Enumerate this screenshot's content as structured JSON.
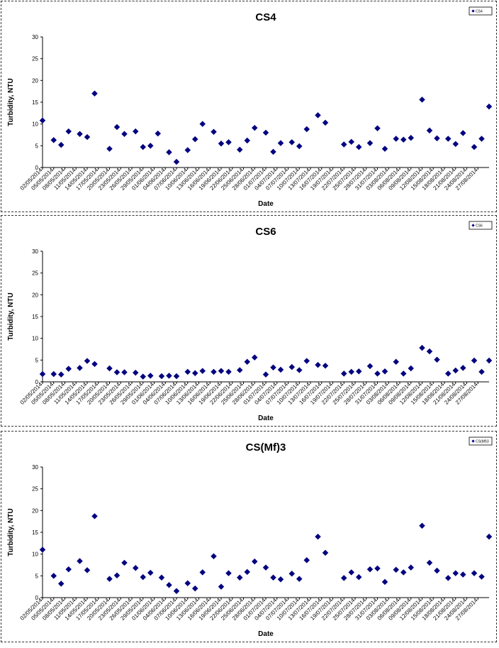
{
  "chart_data": [
    {
      "type": "scatter",
      "title": "CS4",
      "xlabel": "Date",
      "ylabel": "Turbidity, NTU",
      "ylim": [
        0,
        30
      ],
      "yticks": [
        0,
        5,
        10,
        15,
        20,
        25,
        30
      ],
      "xlim": [
        "2014-05-02",
        "2014-08-30"
      ],
      "xticks": [
        "02/05/2014",
        "05/05/2014",
        "08/05/2014",
        "11/05/2014",
        "14/05/2014",
        "17/05/2014",
        "20/05/2014",
        "23/05/2014",
        "26/05/2014",
        "29/05/2014",
        "01/06/2014",
        "04/06/2014",
        "07/06/2014",
        "10/06/2014",
        "13/06/2014",
        "16/06/2014",
        "19/06/2014",
        "22/06/2014",
        "25/06/2014",
        "28/06/2014",
        "01/07/2014",
        "04/07/2014",
        "07/07/2014",
        "10/07/2014",
        "13/07/2014",
        "16/07/2014",
        "19/07/2014",
        "22/07/2014",
        "25/07/2014",
        "28/07/2014",
        "31/07/2014",
        "03/08/2014",
        "06/08/2014",
        "09/08/2014",
        "12/08/2014",
        "15/08/2014",
        "18/08/2014",
        "21/08/2014",
        "24/08/2014",
        "27/08/2014"
      ],
      "legend_position": "top-right",
      "series": [
        {
          "name": "CS4",
          "color": "#000080",
          "x": [
            "2014-05-02",
            "2014-05-05",
            "2014-05-07",
            "2014-05-09",
            "2014-05-12",
            "2014-05-14",
            "2014-05-16",
            "2014-05-20",
            "2014-05-22",
            "2014-05-24",
            "2014-05-27",
            "2014-05-29",
            "2014-05-31",
            "2014-06-02",
            "2014-06-05",
            "2014-06-07",
            "2014-06-10",
            "2014-06-12",
            "2014-06-14",
            "2014-06-17",
            "2014-06-19",
            "2014-06-21",
            "2014-06-24",
            "2014-06-26",
            "2014-06-28",
            "2014-07-01",
            "2014-07-03",
            "2014-07-05",
            "2014-07-08",
            "2014-07-10",
            "2014-07-12",
            "2014-07-15",
            "2014-07-17",
            "2014-07-22",
            "2014-07-24",
            "2014-07-26",
            "2014-07-29",
            "2014-07-31",
            "2014-08-02",
            "2014-08-05",
            "2014-08-07",
            "2014-08-09",
            "2014-08-12",
            "2014-08-14",
            "2014-08-16",
            "2014-08-19",
            "2014-08-21",
            "2014-08-23",
            "2014-08-26",
            "2014-08-28",
            "2014-08-30"
          ],
          "y": [
            10.8,
            6.3,
            5.2,
            8.3,
            7.7,
            7.0,
            17.0,
            4.3,
            9.3,
            7.7,
            8.3,
            4.7,
            5.0,
            7.8,
            3.5,
            1.3,
            4.0,
            6.5,
            10.0,
            8.2,
            5.5,
            5.8,
            4.1,
            6.2,
            9.1,
            8.0,
            3.6,
            5.6,
            5.8,
            4.9,
            8.8,
            12.0,
            10.3,
            5.3,
            5.9,
            4.7,
            5.6,
            9.0,
            4.3,
            6.6,
            6.4,
            6.8,
            15.6,
            8.5,
            6.7,
            6.6,
            5.4,
            7.9,
            4.7,
            6.6,
            14.0
          ]
        }
      ]
    },
    {
      "type": "scatter",
      "title": "CS6",
      "xlabel": "Date",
      "ylabel": "Turbidity, NTU",
      "ylim": [
        0,
        30
      ],
      "yticks": [
        0,
        5,
        10,
        15,
        20,
        25,
        30
      ],
      "xlim": [
        "2014-05-02",
        "2014-08-30"
      ],
      "xticks": [
        "02/05/2014",
        "05/05/2014",
        "08/05/2014",
        "11/05/2014",
        "14/05/2014",
        "17/05/2014",
        "20/05/2014",
        "23/05/2014",
        "26/05/2014",
        "29/05/2014",
        "01/06/2014",
        "04/06/2014",
        "07/06/2014",
        "10/06/2014",
        "13/06/2014",
        "16/06/2014",
        "19/06/2014",
        "22/06/2014",
        "25/06/2014",
        "28/06/2014",
        "01/07/2014",
        "04/07/2014",
        "07/07/2014",
        "10/07/2014",
        "13/07/2014",
        "16/07/2014",
        "19/07/2014",
        "22/07/2014",
        "25/07/2014",
        "28/07/2014",
        "31/07/2014",
        "03/08/2014",
        "06/08/2014",
        "09/08/2014",
        "12/08/2014",
        "15/08/2014",
        "18/08/2014",
        "21/08/2014",
        "24/08/2014",
        "27/08/2014"
      ],
      "legend_position": "top-right",
      "series": [
        {
          "name": "CS6",
          "color": "#000080",
          "x": [
            "2014-05-02",
            "2014-05-05",
            "2014-05-07",
            "2014-05-09",
            "2014-05-12",
            "2014-05-14",
            "2014-05-16",
            "2014-05-20",
            "2014-05-22",
            "2014-05-24",
            "2014-05-27",
            "2014-05-29",
            "2014-05-31",
            "2014-06-03",
            "2014-06-05",
            "2014-06-07",
            "2014-06-10",
            "2014-06-12",
            "2014-06-14",
            "2014-06-17",
            "2014-06-19",
            "2014-06-21",
            "2014-06-24",
            "2014-06-26",
            "2014-06-28",
            "2014-07-01",
            "2014-07-03",
            "2014-07-05",
            "2014-07-08",
            "2014-07-10",
            "2014-07-12",
            "2014-07-15",
            "2014-07-17",
            "2014-07-22",
            "2014-07-24",
            "2014-07-26",
            "2014-07-29",
            "2014-07-31",
            "2014-08-02",
            "2014-08-05",
            "2014-08-07",
            "2014-08-09",
            "2014-08-12",
            "2014-08-14",
            "2014-08-16",
            "2014-08-19",
            "2014-08-21",
            "2014-08-23",
            "2014-08-26",
            "2014-08-28",
            "2014-08-30"
          ],
          "y": [
            1.8,
            1.8,
            1.7,
            3.0,
            3.2,
            4.8,
            4.1,
            3.1,
            2.2,
            2.2,
            2.1,
            1.2,
            1.4,
            1.3,
            1.4,
            1.3,
            2.3,
            2.0,
            2.5,
            2.3,
            2.5,
            2.3,
            2.7,
            4.6,
            5.6,
            1.7,
            3.3,
            2.8,
            3.4,
            2.7,
            4.8,
            3.9,
            3.7,
            1.9,
            2.3,
            2.4,
            3.6,
            1.9,
            2.4,
            4.6,
            1.9,
            3.1,
            7.8,
            7.0,
            5.1,
            1.9,
            2.6,
            3.2,
            4.9,
            2.3,
            4.9
          ]
        }
      ]
    },
    {
      "type": "scatter",
      "title": "CS(Mf)3",
      "xlabel": "Date",
      "ylabel": "Turbidity, NTU",
      "ylim": [
        0,
        30
      ],
      "yticks": [
        0,
        5,
        10,
        15,
        20,
        25,
        30
      ],
      "xlim": [
        "2014-05-02",
        "2014-08-30"
      ],
      "xticks": [
        "02/05/2014",
        "05/05/2014",
        "08/05/2014",
        "11/05/2014",
        "14/05/2014",
        "17/05/2014",
        "20/05/2014",
        "23/05/2014",
        "26/05/2014",
        "29/05/2014",
        "01/06/2014",
        "04/06/2014",
        "07/06/2014",
        "10/06/2014",
        "13/06/2014",
        "16/06/2014",
        "19/06/2014",
        "22/06/2014",
        "25/06/2014",
        "28/06/2014",
        "01/07/2014",
        "04/07/2014",
        "07/07/2014",
        "10/07/2014",
        "13/07/2014",
        "16/07/2014",
        "19/07/2014",
        "22/07/2014",
        "25/07/2014",
        "28/07/2014",
        "31/07/2014",
        "03/08/2014",
        "06/08/2014",
        "09/08/2014",
        "12/08/2014",
        "15/08/2014",
        "18/08/2014",
        "21/08/2014",
        "24/08/2014",
        "27/08/2014"
      ],
      "legend_position": "top-right",
      "series": [
        {
          "name": "CS(Mf)3",
          "color": "#000080",
          "x": [
            "2014-05-02",
            "2014-05-05",
            "2014-05-07",
            "2014-05-09",
            "2014-05-12",
            "2014-05-14",
            "2014-05-16",
            "2014-05-20",
            "2014-05-22",
            "2014-05-24",
            "2014-05-27",
            "2014-05-29",
            "2014-05-31",
            "2014-06-03",
            "2014-06-05",
            "2014-06-07",
            "2014-06-10",
            "2014-06-12",
            "2014-06-14",
            "2014-06-17",
            "2014-06-19",
            "2014-06-21",
            "2014-06-24",
            "2014-06-26",
            "2014-06-28",
            "2014-07-01",
            "2014-07-03",
            "2014-07-05",
            "2014-07-08",
            "2014-07-10",
            "2014-07-12",
            "2014-07-15",
            "2014-07-17",
            "2014-07-22",
            "2014-07-24",
            "2014-07-26",
            "2014-07-29",
            "2014-07-31",
            "2014-08-02",
            "2014-08-05",
            "2014-08-07",
            "2014-08-09",
            "2014-08-12",
            "2014-08-14",
            "2014-08-16",
            "2014-08-19",
            "2014-08-21",
            "2014-08-23",
            "2014-08-26",
            "2014-08-28",
            "2014-08-30"
          ],
          "y": [
            11.0,
            5.0,
            3.2,
            6.5,
            8.4,
            6.3,
            18.7,
            4.3,
            5.1,
            8.0,
            6.8,
            4.7,
            5.7,
            4.6,
            2.9,
            1.5,
            3.3,
            2.1,
            5.8,
            9.5,
            2.5,
            5.6,
            4.6,
            5.9,
            8.3,
            6.9,
            4.6,
            4.2,
            5.5,
            4.3,
            8.6,
            14.0,
            10.3,
            4.5,
            5.8,
            4.7,
            6.5,
            6.7,
            3.6,
            6.4,
            5.8,
            6.9,
            16.5,
            8.0,
            6.2,
            4.5,
            5.6,
            5.3,
            5.6,
            4.8,
            14.0
          ]
        }
      ]
    }
  ]
}
